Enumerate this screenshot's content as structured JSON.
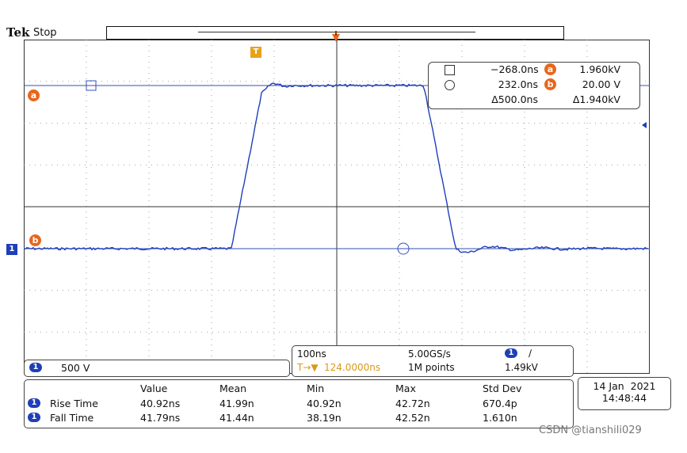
{
  "header": {
    "brand": "Tek",
    "state": "Stop"
  },
  "markers": {
    "trigger_position": "T",
    "cursor_a": "a",
    "cursor_b": "b",
    "channel": "1"
  },
  "cursors": {
    "row1": {
      "time": "−268.0ns",
      "label": "a",
      "value": "1.960kV"
    },
    "row2": {
      "time": "232.0ns",
      "label": "b",
      "value": "20.00 V"
    },
    "row3": {
      "time": "Δ500.0ns",
      "value": "Δ1.940kV"
    }
  },
  "channel_scale": {
    "channel": "1",
    "value": "500 V"
  },
  "timebase": {
    "time_per_div": "100ns",
    "sample_rate": "5.00GS/s",
    "trigger_channel": "1",
    "trigger_slope": "∕",
    "trigger_offset": "124.0000ns",
    "trigger_offset_prefix": "T→▼",
    "record_length": "1M points",
    "trigger_level": "1.49kV"
  },
  "measurements": {
    "headers": [
      "Value",
      "Mean",
      "Min",
      "Max",
      "Std Dev"
    ],
    "rows": [
      {
        "channel": "1",
        "name": "Rise Time",
        "values": [
          "40.92ns",
          "41.99n",
          "40.92n",
          "42.72n",
          "670.4p"
        ]
      },
      {
        "channel": "1",
        "name": "Fall Time",
        "values": [
          "41.79ns",
          "41.44n",
          "38.19n",
          "42.52n",
          "1.610n"
        ]
      }
    ]
  },
  "datetime": {
    "date": "14 Jan  2021",
    "time": "14:48:44"
  },
  "watermark": "CSDN @tianshili029",
  "colors": {
    "trace": "#1f3fb8",
    "orange": "#e8661c",
    "trigger_text": "#d89a1a"
  }
}
